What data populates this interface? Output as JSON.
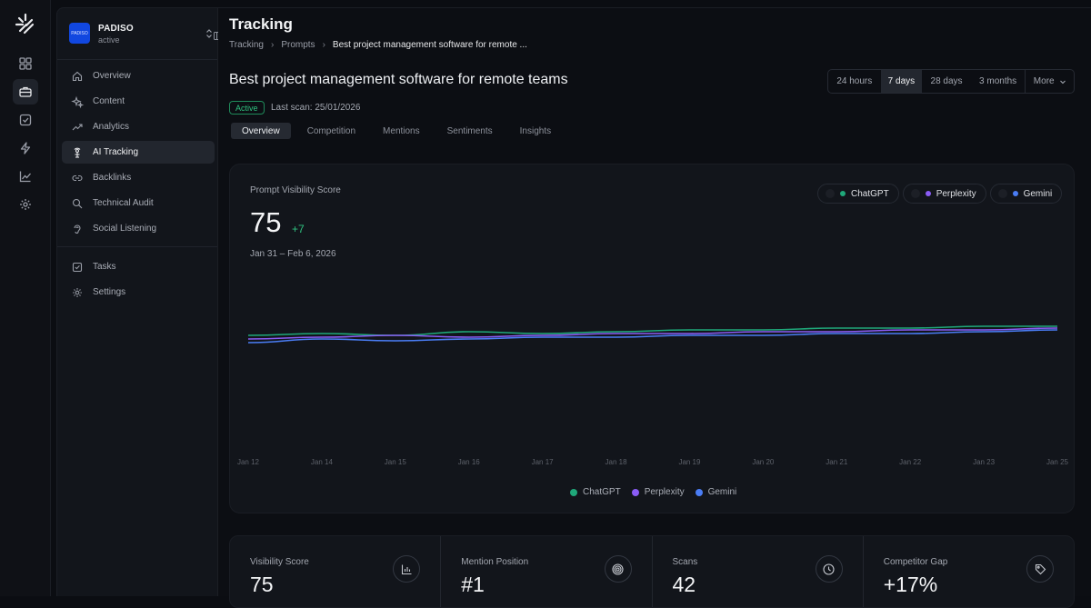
{
  "org": {
    "badge": "PADISO",
    "name": "PADISO",
    "status": "active"
  },
  "rail_icons": [
    "dashboard-icon",
    "briefcase-icon",
    "checkbox-icon",
    "bolt-icon",
    "chart-line-icon",
    "gear-icon"
  ],
  "nav": {
    "items": [
      {
        "label": "Overview",
        "icon": "home-icon"
      },
      {
        "label": "Content",
        "icon": "sparkle-icon"
      },
      {
        "label": "Analytics",
        "icon": "analytics-icon"
      },
      {
        "label": "AI Tracking",
        "icon": "radar-icon",
        "active": true
      },
      {
        "label": "Backlinks",
        "icon": "link-icon"
      },
      {
        "label": "Technical Audit",
        "icon": "search-icon"
      },
      {
        "label": "Social Listening",
        "icon": "ear-icon"
      }
    ],
    "secondary": [
      {
        "label": "Tasks",
        "icon": "checkbox-icon"
      },
      {
        "label": "Settings",
        "icon": "gear-icon"
      }
    ]
  },
  "header": {
    "title": "Tracking",
    "breadcrumbs": [
      "Tracking",
      "Prompts",
      "Best project management software for remote ..."
    ]
  },
  "prompt": {
    "title": "Best project management software for remote teams",
    "status": "Active",
    "last_scan": "Last scan: 25/01/2026"
  },
  "range": {
    "options": [
      "24 hours",
      "7 days",
      "28 days",
      "3 months",
      "More"
    ],
    "selected": "7 days"
  },
  "tabs": {
    "items": [
      "Overview",
      "Competition",
      "Mentions",
      "Sentiments",
      "Insights"
    ],
    "selected": "Overview"
  },
  "card": {
    "title": "Prompt Visibility Score",
    "score": "75",
    "delta": "+7",
    "date_range": "Jan 31 – Feb 6, 2026",
    "chips": [
      "ChatGPT",
      "Perplexity",
      "Gemini"
    ]
  },
  "colors": {
    "chatgpt": "#1fa87a",
    "perplexity": "#8a5cf5",
    "gemini": "#4a7df5",
    "positive": "#2fc17f"
  },
  "chart_data": {
    "type": "line",
    "x": [
      "Jan 12",
      "Jan 14",
      "Jan 15",
      "Jan 16",
      "Jan 17",
      "Jan 18",
      "Jan 19",
      "Jan 20",
      "Jan 21",
      "Jan 22",
      "Jan 23",
      "Jan 25"
    ],
    "series": [
      {
        "name": "ChatGPT",
        "values": [
          66,
          67,
          66,
          68,
          67,
          68,
          69,
          69,
          70,
          70,
          71,
          71
        ]
      },
      {
        "name": "Perplexity",
        "values": [
          64,
          65,
          66,
          65,
          66,
          67,
          67,
          68,
          68,
          69,
          69,
          70
        ]
      },
      {
        "name": "Gemini",
        "values": [
          62,
          64,
          63,
          64,
          65,
          65,
          66,
          66,
          67,
          67,
          68,
          69
        ]
      }
    ],
    "ylim": [
      0,
      100
    ],
    "grid": false,
    "legend": "bottom-center"
  },
  "metrics": [
    {
      "label": "Visibility Score",
      "value": "75",
      "icon": "bar-chart-icon"
    },
    {
      "label": "Mention Position",
      "value": "#1",
      "icon": "target-icon"
    },
    {
      "label": "Scans",
      "value": "42",
      "icon": "clock-icon"
    },
    {
      "label": "Competitor Gap",
      "value": "+17%",
      "icon": "tag-icon"
    }
  ]
}
